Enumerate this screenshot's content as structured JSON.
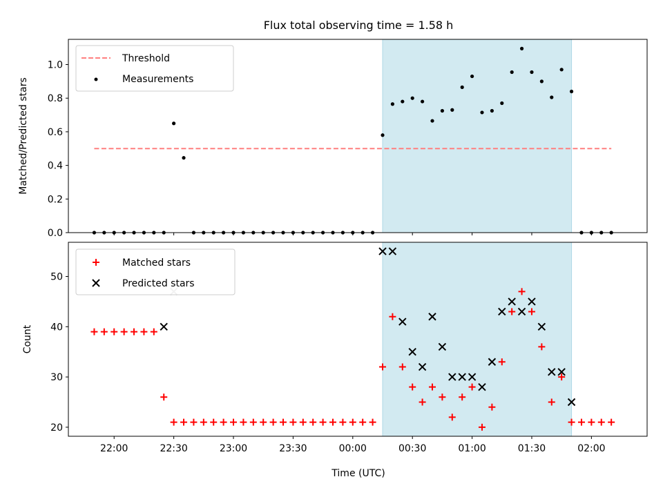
{
  "figure": {
    "title": "Flux total observing time = 1.58 h",
    "xlabel": "Time (UTC)"
  },
  "chart_data": [
    {
      "type": "scatter",
      "panel": "top",
      "ylabel": "Matched/Predicted stars",
      "xlim": [
        "21:37",
        "02:28"
      ],
      "ylim": [
        0,
        1.15
      ],
      "yticks": [
        "0.0",
        "0.2",
        "0.4",
        "0.6",
        "0.8",
        "1.0"
      ],
      "xticks": [
        "22:00",
        "22:30",
        "23:00",
        "23:30",
        "00:00",
        "00:30",
        "01:00",
        "01:30",
        "02:00"
      ],
      "grid": false,
      "legend_position": "top-left",
      "shaded_region": {
        "x_start": "00:15",
        "x_end": "01:50",
        "color": "#add8e6"
      },
      "series": [
        {
          "name": "Threshold",
          "style": "dashed-line",
          "color": "#ff7f7f",
          "x": [
            "21:50",
            "02:10"
          ],
          "y": [
            0.5,
            0.5
          ]
        },
        {
          "name": "Measurements",
          "style": "dot",
          "color": "#000000",
          "x": [
            "21:50",
            "21:55",
            "22:00",
            "22:05",
            "22:10",
            "22:15",
            "22:20",
            "22:25",
            "22:30",
            "22:35",
            "22:40",
            "22:45",
            "22:50",
            "22:55",
            "23:00",
            "23:05",
            "23:10",
            "23:15",
            "23:20",
            "23:25",
            "23:30",
            "23:35",
            "23:40",
            "23:45",
            "23:50",
            "23:55",
            "00:00",
            "00:05",
            "00:10",
            "00:15",
            "00:20",
            "00:25",
            "00:30",
            "00:35",
            "00:40",
            "00:45",
            "00:50",
            "00:55",
            "01:00",
            "01:05",
            "01:10",
            "01:15",
            "01:20",
            "01:25",
            "01:30",
            "01:35",
            "01:40",
            "01:45",
            "01:50",
            "01:55",
            "02:00",
            "02:05",
            "02:10"
          ],
          "y": [
            0,
            0,
            0,
            0,
            0,
            0,
            0,
            0,
            0.65,
            0.445,
            0,
            0,
            0,
            0,
            0,
            0,
            0,
            0,
            0,
            0,
            0,
            0,
            0,
            0,
            0,
            0,
            0,
            0,
            0,
            0.58,
            0.765,
            0.78,
            0.8,
            0.78,
            0.665,
            0.725,
            0.73,
            0.865,
            0.93,
            0.715,
            0.725,
            0.77,
            0.955,
            1.095,
            0.955,
            0.9,
            0.805,
            0.97,
            0.84,
            0,
            0,
            0,
            0
          ]
        }
      ]
    },
    {
      "type": "scatter",
      "panel": "bottom",
      "ylabel": "Count",
      "xlim": [
        "21:37",
        "02:28"
      ],
      "ylim": [
        18.2,
        56.8
      ],
      "yticks": [
        "20",
        "30",
        "40",
        "50"
      ],
      "xticks": [
        "22:00",
        "22:30",
        "23:00",
        "23:30",
        "00:00",
        "00:30",
        "01:00",
        "01:30",
        "02:00"
      ],
      "grid": false,
      "legend_position": "top-left",
      "shaded_region": {
        "x_start": "00:15",
        "x_end": "01:50",
        "color": "#add8e6"
      },
      "series": [
        {
          "name": "Matched stars",
          "marker": "plus",
          "color": "#ff0000",
          "x": [
            "21:50",
            "21:55",
            "22:00",
            "22:05",
            "22:10",
            "22:15",
            "22:20",
            "22:25",
            "22:30",
            "22:35",
            "22:40",
            "22:45",
            "22:50",
            "22:55",
            "23:00",
            "23:05",
            "23:10",
            "23:15",
            "23:20",
            "23:25",
            "23:30",
            "23:35",
            "23:40",
            "23:45",
            "23:50",
            "23:55",
            "00:00",
            "00:05",
            "00:10",
            "00:15",
            "00:20",
            "00:25",
            "00:30",
            "00:35",
            "00:40",
            "00:45",
            "00:50",
            "00:55",
            "01:00",
            "01:05",
            "01:10",
            "01:15",
            "01:20",
            "01:25",
            "01:30",
            "01:35",
            "01:40",
            "01:45",
            "01:50",
            "01:55",
            "02:00",
            "02:05",
            "02:10"
          ],
          "y": [
            39,
            39,
            39,
            39,
            39,
            39,
            39,
            26,
            21,
            21,
            21,
            21,
            21,
            21,
            21,
            21,
            21,
            21,
            21,
            21,
            21,
            21,
            21,
            21,
            21,
            21,
            21,
            21,
            21,
            32,
            42,
            32,
            28,
            25,
            28,
            26,
            22,
            26,
            28,
            20,
            24,
            33,
            43,
            47,
            43,
            36,
            25,
            30,
            21,
            21,
            21,
            21,
            21
          ]
        },
        {
          "name": "Predicted stars",
          "marker": "x",
          "color": "#000000",
          "x": [
            "22:25",
            "22:30",
            "00:15",
            "00:20",
            "00:25",
            "00:30",
            "00:35",
            "00:40",
            "00:45",
            "00:50",
            "00:55",
            "01:00",
            "01:05",
            "01:10",
            "01:15",
            "01:20",
            "01:25",
            "01:30",
            "01:35",
            "01:40",
            "01:45",
            "01:50"
          ],
          "y": [
            40,
            47,
            55,
            55,
            41,
            35,
            32,
            42,
            36,
            30,
            30,
            30,
            28,
            33,
            43,
            45,
            43,
            45,
            40,
            31,
            31,
            25
          ],
          "note_first_two_grey": [
            false,
            true
          ]
        }
      ]
    }
  ]
}
